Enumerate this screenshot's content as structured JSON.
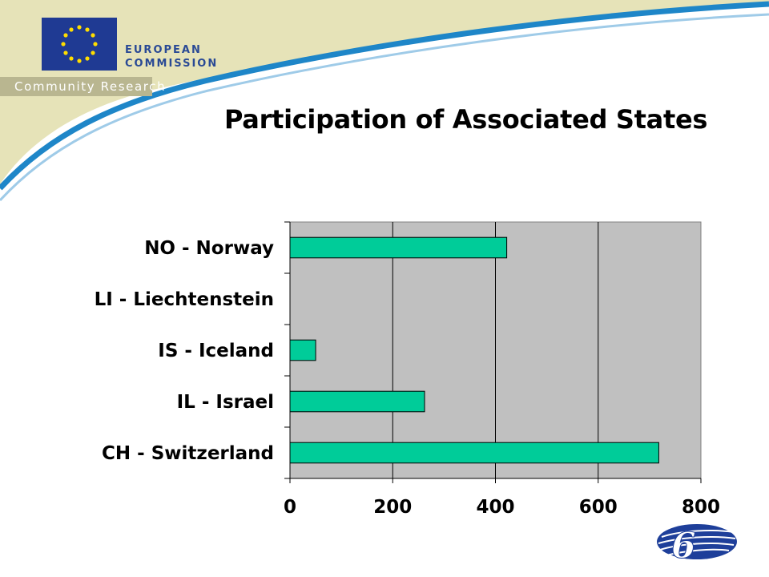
{
  "header": {
    "org_line1": "EUROPEAN",
    "org_line2": "COMMISSION",
    "subtitle": "Community Research"
  },
  "slide": {
    "title": "Participation of Associated States"
  },
  "colors": {
    "swoosh": "#e6e3b8",
    "swoosh_stroke": "#1e86c8",
    "plot_bg": "#c0c0c0",
    "bar_fill": "#00cc99",
    "flag_blue": "#1f3a93",
    "star_gold": "#ffdd00"
  },
  "chart_data": {
    "type": "bar",
    "orientation": "horizontal",
    "categories": [
      "NO - Norway",
      "LI - Liechtenstein",
      "IS - Iceland",
      "IL - Israel",
      "CH - Switzerland"
    ],
    "values": [
      422,
      0,
      50,
      262,
      718
    ],
    "xlim": [
      0,
      800
    ],
    "xticks": [
      "0",
      "200",
      "400",
      "600",
      "800"
    ],
    "grid": "vertical lines at major ticks",
    "legend": "none",
    "title": "",
    "xlabel": "",
    "ylabel": ""
  }
}
